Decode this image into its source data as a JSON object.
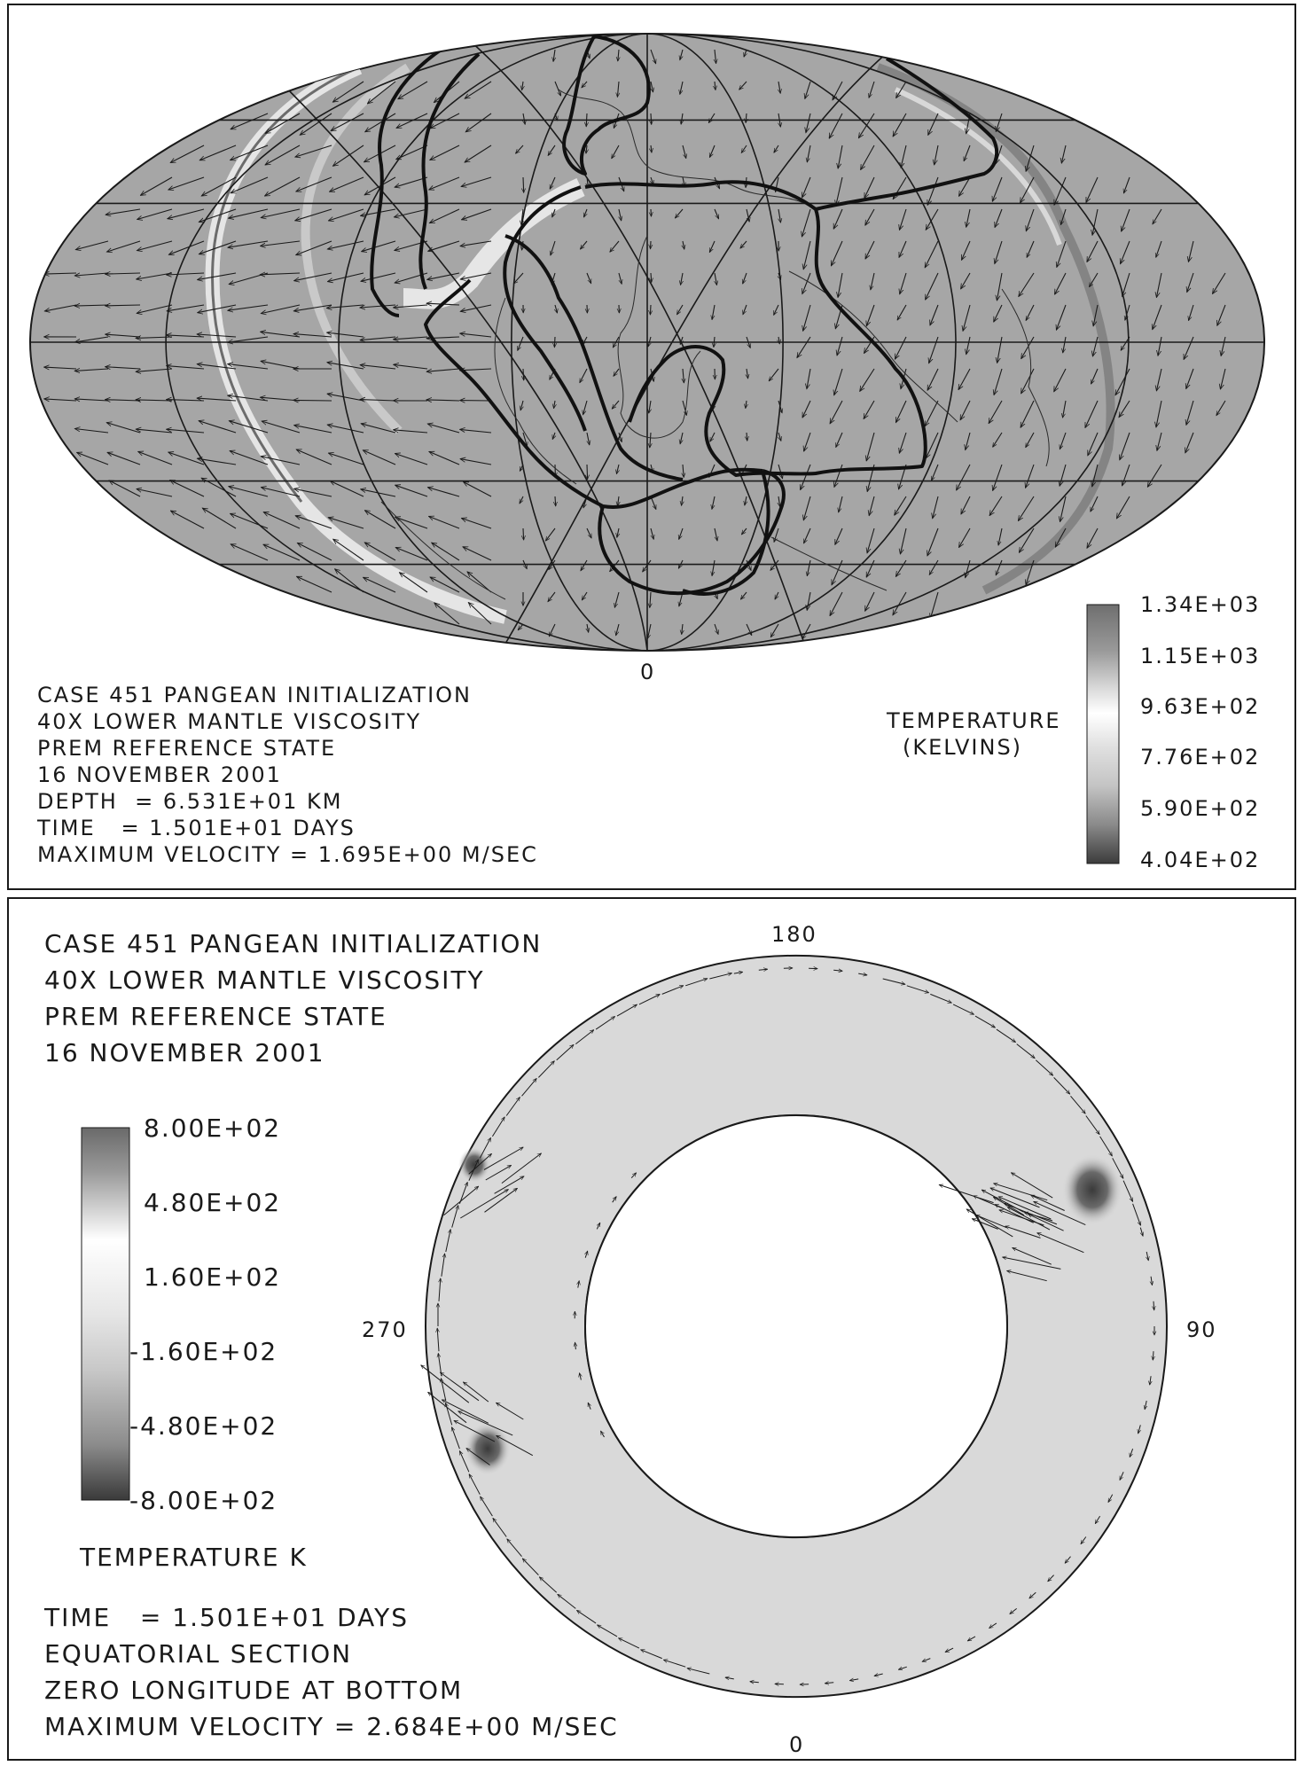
{
  "top_panel": {
    "info_lines": [
      "CASE 451 PANGEAN INITIALIZATION",
      "40X LOWER MANTLE VISCOSITY",
      "PREM REFERENCE STATE",
      "16 NOVEMBER 2001",
      "DEPTH  = 6.531E+01 KM",
      "TIME   = 1.501E+01 DAYS",
      "MAXIMUM VELOCITY = 1.695E+00 M/SEC"
    ],
    "meridian_label": "0",
    "legend_title_1": "TEMPERATURE",
    "legend_title_2": "(KELVINS)",
    "legend_ticks": [
      "1.34E+03",
      "1.15E+03",
      "9.63E+02",
      "7.76E+02",
      "5.90E+02",
      "4.04E+02"
    ],
    "colors": {
      "background": "#a6a6a6",
      "plate_boundary": "#111111",
      "hot_ridge": "#ececec"
    }
  },
  "bottom_panel": {
    "info_lines_top": [
      "CASE 451 PANGEAN INITIALIZATION",
      "40X LOWER MANTLE VISCOSITY",
      "PREM REFERENCE STATE",
      "16 NOVEMBER 2001"
    ],
    "legend_ticks": [
      "8.00E+02",
      "4.80E+02",
      "1.60E+02",
      "-1.60E+02",
      "-4.80E+02",
      "-8.00E+02"
    ],
    "legend_title": "TEMPERATURE K",
    "info_lines_bottom": [
      "TIME   = 1.501E+01 DAYS",
      "EQUATORIAL SECTION",
      "ZERO LONGITUDE AT BOTTOM",
      "MAXIMUM VELOCITY = 2.684E+00 M/SEC"
    ],
    "angle_labels": {
      "top": "180",
      "left": "270",
      "right": "90",
      "bottom": "0"
    },
    "colors": {
      "annulus": "#d9d9d9",
      "cold_anomaly": "#3a3a3a"
    }
  }
}
